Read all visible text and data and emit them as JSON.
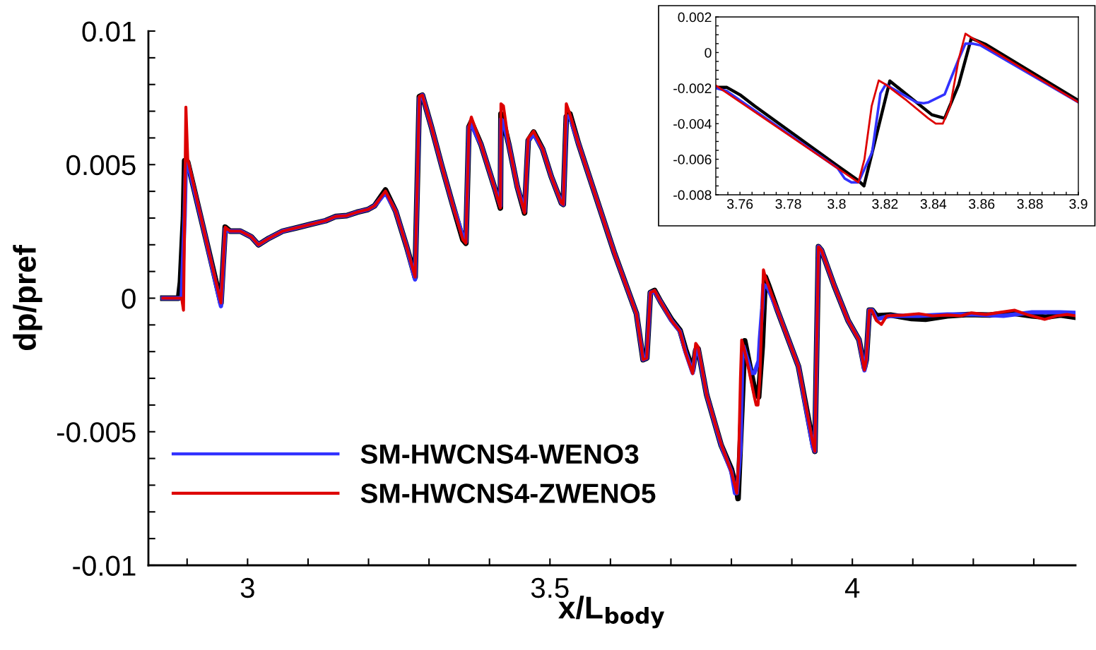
{
  "chart_data": [
    {
      "type": "line",
      "xlabel": "x/L$_{body}$",
      "ylabel": "dp/pref",
      "legend": "bottom left",
      "xlim": [
        2.836,
        4.369
      ],
      "ylim": [
        -0.01,
        0.01
      ],
      "xticks": [
        {
          "value": 2.9,
          "label": null
        },
        3,
        {
          "value": 3.1,
          "label": null
        },
        {
          "value": 3.2,
          "label": null
        },
        {
          "value": 3.3,
          "label": null
        },
        {
          "value": 3.4,
          "label": null
        },
        3.5,
        {
          "value": 3.6,
          "label": null
        },
        {
          "value": 3.7,
          "label": null
        },
        {
          "value": 3.8,
          "label": null
        },
        {
          "value": 3.9,
          "label": null
        },
        4,
        {
          "value": 4.1,
          "label": null
        },
        {
          "value": 4.2,
          "label": null
        },
        {
          "value": 4.3,
          "label": null
        }
      ],
      "yticks": [
        -0.01,
        {
          "value": -0.009,
          "label": null
        },
        {
          "value": -0.008,
          "label": null
        },
        {
          "value": -0.007,
          "label": null
        },
        {
          "value": -0.006,
          "label": null
        },
        -0.005,
        {
          "value": -0.004,
          "label": null
        },
        {
          "value": -0.003,
          "label": null
        },
        {
          "value": -0.002,
          "label": null
        },
        {
          "value": -0.001,
          "label": null
        },
        0,
        {
          "value": 0.001,
          "label": null
        },
        {
          "value": 0.002,
          "label": null
        },
        {
          "value": 0.003,
          "label": null
        },
        {
          "value": 0.004,
          "label": null
        },
        0.005,
        {
          "value": 0.006,
          "label": null
        },
        {
          "value": 0.007,
          "label": null
        },
        {
          "value": 0.008,
          "label": null
        },
        {
          "value": 0.009,
          "label": null
        },
        0.01
      ],
      "series": [
        {
          "color": "#000000",
          "x": [
            2.86,
            2.886,
            2.889,
            2.894,
            2.896,
            2.901,
            2.93,
            2.956,
            2.963,
            2.971,
            2.988,
            3.006,
            3.018,
            3.035,
            3.058,
            3.082,
            3.105,
            3.129,
            3.146,
            3.164,
            3.181,
            3.199,
            3.21,
            3.228,
            3.245,
            3.263,
            3.277,
            3.284,
            3.289,
            3.304,
            3.321,
            3.339,
            3.356,
            3.361,
            3.366,
            3.37,
            3.386,
            3.409,
            3.418,
            3.419,
            3.423,
            3.432,
            3.446,
            3.458,
            3.464,
            3.473,
            3.488,
            3.502,
            3.519,
            3.522,
            3.527,
            3.533,
            3.547,
            3.561,
            3.607,
            3.643,
            3.654,
            3.66,
            3.666,
            3.673,
            3.683,
            3.701,
            3.715,
            3.724,
            3.736,
            3.741,
            3.745,
            3.759,
            3.783,
            3.8,
            3.809,
            3.811,
            3.822,
            3.839,
            3.845,
            3.851,
            3.856,
            3.862,
            3.876,
            3.911,
            3.935,
            3.938,
            3.944,
            3.949,
            3.97,
            3.993,
            4.011,
            4.02,
            4.023,
            4.028,
            4.033,
            4.04,
            4.063,
            4.098,
            4.121,
            4.157,
            4.192,
            4.227,
            4.262,
            4.297,
            4.32,
            4.344,
            4.369
          ],
          "values": [
            0,
            0,
            0.0006,
            0.003,
            0.00515,
            0.00509,
            0.00232,
            -0.00018,
            0.00266,
            0.00251,
            0.00251,
            0.0023,
            0.002,
            0.00224,
            0.00251,
            0.00264,
            0.00277,
            0.0029,
            0.00306,
            0.00309,
            0.00322,
            0.00332,
            0.00346,
            0.00405,
            0.00325,
            0.00193,
            0.00079,
            0.00755,
            0.0076,
            0.00641,
            0.00496,
            0.00351,
            0.00219,
            0.00206,
            0.00641,
            0.0066,
            0.00575,
            0.00409,
            0.00338,
            0.0069,
            0.0066,
            0.00575,
            0.00417,
            0.00319,
            0.0059,
            0.00622,
            0.00557,
            0.00456,
            0.00356,
            0.00351,
            0.0068,
            0.0069,
            0.0058,
            0.00483,
            0.00166,
            -0.00058,
            -0.0023,
            -0.00224,
            0.00021,
            0.00029,
            -0.00013,
            -0.0008,
            -0.0012,
            -0.0019,
            -0.00269,
            -0.00195,
            -0.0019,
            -0.00361,
            -0.0055,
            -0.0064,
            -0.0072,
            -0.0075,
            -0.0016,
            -0.0035,
            -0.0037,
            -0.0018,
            0.0008,
            0.00045,
            -0.00045,
            -0.00256,
            -0.00546,
            -0.00573,
            0.00193,
            0.00179,
            0.00047,
            -0.00084,
            -0.00156,
            -0.0026,
            -0.0023,
            -0.00045,
            -0.00045,
            -0.00066,
            -0.00063,
            -0.00076,
            -0.00079,
            -0.00066,
            -0.00061,
            -0.00063,
            -0.00055,
            -0.00066,
            -0.00071,
            -0.00063,
            -0.00071
          ]
        },
        {
          "name": "SM-HWCNS4-WENO3",
          "color": "#3232ff",
          "x": [
            2.86,
            2.891,
            2.892,
            2.896,
            2.898,
            2.901,
            2.93,
            2.956,
            2.963,
            2.971,
            2.988,
            3.006,
            3.018,
            3.035,
            3.058,
            3.082,
            3.105,
            3.129,
            3.146,
            3.164,
            3.181,
            3.199,
            3.21,
            3.228,
            3.245,
            3.263,
            3.277,
            3.284,
            3.289,
            3.304,
            3.321,
            3.339,
            3.356,
            3.361,
            3.366,
            3.37,
            3.386,
            3.409,
            3.418,
            3.419,
            3.423,
            3.432,
            3.446,
            3.458,
            3.464,
            3.473,
            3.488,
            3.502,
            3.519,
            3.522,
            3.527,
            3.533,
            3.547,
            3.561,
            3.607,
            3.643,
            3.654,
            3.66,
            3.666,
            3.673,
            3.683,
            3.701,
            3.715,
            3.724,
            3.736,
            3.741,
            3.745,
            3.759,
            3.783,
            3.8,
            3.806,
            3.809,
            3.815,
            3.818,
            3.82,
            3.833,
            3.838,
            3.845,
            3.847,
            3.851,
            3.853,
            3.86,
            3.876,
            3.911,
            3.935,
            3.938,
            3.944,
            3.949,
            3.97,
            3.993,
            4.011,
            4.02,
            4.023,
            4.028,
            4.033,
            4.04,
            4.063,
            4.11,
            4.157,
            4.203,
            4.25,
            4.297,
            4.344,
            4.369
          ],
          "values": [
            0,
            0,
            0.0006,
            0.00311,
            0.00515,
            0.00509,
            0.00232,
            -0.0003,
            0.00259,
            0.00251,
            0.00251,
            0.0023,
            0.002,
            0.00224,
            0.00251,
            0.00264,
            0.00277,
            0.0029,
            0.00306,
            0.00309,
            0.00322,
            0.00332,
            0.00346,
            0.00395,
            0.00325,
            0.00193,
            0.0007,
            0.0075,
            0.0076,
            0.00641,
            0.00496,
            0.00351,
            0.0023,
            0.00211,
            0.00641,
            0.0065,
            0.00575,
            0.00409,
            0.00345,
            0.0067,
            0.0066,
            0.00575,
            0.00417,
            0.00325,
            0.0059,
            0.00615,
            0.00557,
            0.00456,
            0.00356,
            0.00351,
            0.0068,
            0.0068,
            0.0058,
            0.00483,
            0.00166,
            -0.00058,
            -0.0023,
            -0.00224,
            0.00021,
            0.00026,
            -0.00013,
            -0.00084,
            -0.00124,
            -0.002,
            -0.0028,
            -0.0019,
            -0.0019,
            -0.00361,
            -0.0055,
            -0.0065,
            -0.0073,
            -0.0073,
            -0.0056,
            -0.0023,
            -0.0018,
            -0.0028,
            -0.0028,
            -0.00235,
            -0.00155,
            -0.00037,
            0.0005,
            0.0004,
            -0.00045,
            -0.00256,
            -0.0056,
            -0.00573,
            0.00193,
            0.00179,
            0.00047,
            -0.00084,
            -0.00156,
            -0.0027,
            -0.0023,
            -0.00045,
            -0.00045,
            -0.00079,
            -0.00066,
            -0.00066,
            -0.00061,
            -0.00061,
            -0.00066,
            -0.00053,
            -0.00053,
            -0.00055
          ]
        },
        {
          "name": "SM-HWCNS4-ZWENO5",
          "color": "#dd0000",
          "x": [
            2.86,
            2.891,
            2.894,
            2.896,
            2.898,
            2.901,
            2.93,
            2.956,
            2.963,
            2.971,
            2.988,
            3.006,
            3.018,
            3.035,
            3.058,
            3.082,
            3.105,
            3.129,
            3.146,
            3.164,
            3.181,
            3.199,
            3.21,
            3.228,
            3.245,
            3.263,
            3.277,
            3.284,
            3.289,
            3.304,
            3.321,
            3.339,
            3.356,
            3.361,
            3.366,
            3.37,
            3.386,
            3.409,
            3.418,
            3.419,
            3.423,
            3.432,
            3.446,
            3.458,
            3.464,
            3.473,
            3.488,
            3.502,
            3.519,
            3.522,
            3.527,
            3.533,
            3.547,
            3.561,
            3.607,
            3.643,
            3.654,
            3.66,
            3.666,
            3.673,
            3.683,
            3.701,
            3.715,
            3.724,
            3.736,
            3.741,
            3.745,
            3.759,
            3.783,
            3.8,
            3.809,
            3.812,
            3.815,
            3.817,
            3.82,
            3.829,
            3.838,
            3.841,
            3.844,
            3.847,
            3.851,
            3.853,
            3.856,
            3.876,
            3.911,
            3.935,
            3.938,
            3.944,
            3.949,
            3.97,
            3.993,
            4.011,
            4.02,
            4.023,
            4.028,
            4.032,
            4.04,
            4.048,
            4.057,
            4.086,
            4.11,
            4.133,
            4.157,
            4.18,
            4.197,
            4.221,
            4.244,
            4.268,
            4.291,
            4.318,
            4.338,
            4.355,
            4.369
          ],
          "values": [
            0,
            0,
            -0.00045,
            0.00325,
            0.00715,
            0.00522,
            0.00232,
            -0.00018,
            0.00266,
            0.00251,
            0.00251,
            0.0023,
            0.002,
            0.00224,
            0.00251,
            0.00264,
            0.00277,
            0.0029,
            0.00306,
            0.00309,
            0.00322,
            0.00332,
            0.00346,
            0.00401,
            0.00325,
            0.00193,
            0.00079,
            0.00755,
            0.0076,
            0.00641,
            0.00496,
            0.00351,
            0.00219,
            0.00206,
            0.00641,
            0.00678,
            0.00575,
            0.00409,
            0.00338,
            0.00728,
            0.0072,
            0.00575,
            0.00417,
            0.00319,
            0.00599,
            0.00625,
            0.00557,
            0.00456,
            0.00356,
            0.00351,
            0.00728,
            0.00689,
            0.0058,
            0.00483,
            0.00166,
            -0.00058,
            -0.0023,
            -0.00224,
            0.00021,
            0.00029,
            -0.00013,
            -0.00084,
            -0.00124,
            -0.00203,
            -0.00282,
            -0.00169,
            -0.00182,
            -0.00361,
            -0.00546,
            -0.0065,
            -0.0073,
            -0.006,
            -0.003,
            -0.00157,
            -0.0018,
            -0.0027,
            -0.0037,
            -0.004,
            -0.004,
            -0.003,
            -0.00037,
            0.00106,
            0.0008,
            -0.00045,
            -0.00256,
            -0.00546,
            -0.00573,
            0.00193,
            0.00179,
            0.00047,
            -0.00084,
            -0.00156,
            -0.00269,
            -0.0023,
            -0.00045,
            -0.00045,
            -0.00084,
            -0.00098,
            -0.00066,
            -0.00063,
            -0.00058,
            -0.00066,
            -0.00063,
            -0.00066,
            -0.00055,
            -0.00061,
            -0.00053,
            -0.00045,
            -0.00063,
            -0.00079,
            -0.00066,
            -0.00061,
            -0.00066
          ]
        }
      ]
    },
    {
      "type": "line",
      "xlim": [
        3.75,
        3.9
      ],
      "ylim": [
        -0.008,
        0.002
      ],
      "xticks": [
        {
          "value": 3.755,
          "label": null
        },
        3.76,
        {
          "value": 3.765,
          "label": null
        },
        {
          "value": 3.77,
          "label": null
        },
        {
          "value": 3.775,
          "label": null
        },
        3.78,
        {
          "value": 3.785,
          "label": null
        },
        {
          "value": 3.79,
          "label": null
        },
        {
          "value": 3.795,
          "label": null
        },
        3.8,
        {
          "value": 3.805,
          "label": null
        },
        {
          "value": 3.81,
          "label": null
        },
        {
          "value": 3.815,
          "label": null
        },
        3.82,
        {
          "value": 3.825,
          "label": null
        },
        {
          "value": 3.83,
          "label": null
        },
        {
          "value": 3.835,
          "label": null
        },
        3.84,
        {
          "value": 3.845,
          "label": null
        },
        {
          "value": 3.85,
          "label": null
        },
        {
          "value": 3.855,
          "label": null
        },
        3.86,
        {
          "value": 3.865,
          "label": null
        },
        {
          "value": 3.87,
          "label": null
        },
        {
          "value": 3.875,
          "label": null
        },
        3.88,
        {
          "value": 3.885,
          "label": null
        },
        {
          "value": 3.89,
          "label": null
        },
        {
          "value": 3.895,
          "label": null
        },
        3.9
      ],
      "yticks": [
        -0.008,
        {
          "value": -0.0075,
          "label": null
        },
        {
          "value": -0.007,
          "label": null
        },
        {
          "value": -0.0065,
          "label": null
        },
        -0.006,
        {
          "value": -0.0055,
          "label": null
        },
        {
          "value": -0.005,
          "label": null
        },
        {
          "value": -0.0045,
          "label": null
        },
        -0.004,
        {
          "value": -0.0035,
          "label": null
        },
        {
          "value": -0.003,
          "label": null
        },
        {
          "value": -0.0025,
          "label": null
        },
        -0.002,
        {
          "value": -0.0015,
          "label": null
        },
        {
          "value": -0.001,
          "label": null
        },
        {
          "value": -0.0005,
          "label": null
        },
        0,
        {
          "value": 0.0005,
          "label": null
        },
        {
          "value": 0.001,
          "label": null
        },
        {
          "value": 0.0015,
          "label": null
        },
        0.002
      ],
      "series": [
        {
          "color": "#000000",
          "x": [
            3.75,
            3.7546,
            3.7603,
            3.766,
            3.8004,
            3.809,
            3.8113,
            3.822,
            3.8394,
            3.8447,
            3.8505,
            3.8557,
            3.8618,
            3.9
          ],
          "values": [
            -0.00196,
            -0.00196,
            -0.0024,
            -0.003,
            -0.00637,
            -0.0072,
            -0.0075,
            -0.0016,
            -0.0035,
            -0.0037,
            -0.0018,
            0.0008,
            0.00045,
            -0.0027
          ]
        },
        {
          "color": "#3232ff",
          "x": [
            3.75,
            3.7546,
            3.8004,
            3.8033,
            3.8061,
            3.809,
            3.8147,
            3.8181,
            3.8203,
            3.833,
            3.836,
            3.838,
            3.8447,
            3.847,
            3.8505,
            3.8533,
            3.8562,
            3.8596,
            3.9
          ],
          "values": [
            -0.002,
            -0.00217,
            -0.0065,
            -0.00708,
            -0.0073,
            -0.0073,
            -0.0056,
            -0.0023,
            -0.0018,
            -0.0028,
            -0.00285,
            -0.0028,
            -0.00235,
            -0.00155,
            -0.00037,
            0.0005,
            0.0005,
            0.0004,
            -0.0028
          ]
        },
        {
          "color": "#dd0000",
          "x": [
            3.75,
            3.809,
            3.8115,
            3.8145,
            3.8174,
            3.8203,
            3.829,
            3.8379,
            3.841,
            3.8439,
            3.847,
            3.8505,
            3.8533,
            3.8562,
            3.9
          ],
          "values": [
            -0.00185,
            -0.0073,
            -0.006,
            -0.003,
            -0.00157,
            -0.0018,
            -0.0027,
            -0.0037,
            -0.004,
            -0.004,
            -0.003,
            -0.00037,
            0.00106,
            0.0008,
            -0.0028
          ]
        }
      ]
    }
  ]
}
